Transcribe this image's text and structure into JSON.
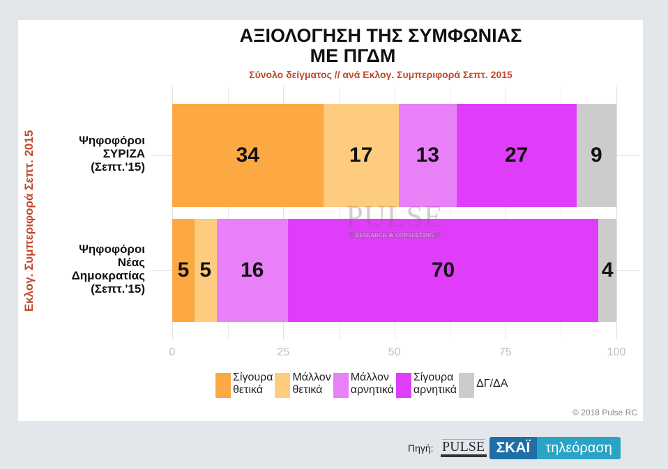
{
  "title_line1": "ΑΞΙΟΛΟΓΗΣΗ ΤΗΣ ΣΥΜΦΩΝΙΑΣ",
  "title_line2": "ΜΕ ΠΓΔΜ",
  "subtitle": "Σύνολο δείγματος // ανά Εκλογ. Συμπεριφορά Σεπτ. 2015",
  "y_axis_label": "Εκλογ. Συμπεριφορά Σεπτ. 2015",
  "categories": [
    {
      "line1": "Ψηφοφόροι",
      "line2": "ΣΥΡΙΖΑ",
      "line3": "(Σεπτ.'15)"
    },
    {
      "line1": "Ψηφοφόροι",
      "line2": "Νέας",
      "line3": "Δημοκρατίας",
      "line4": "(Σεπτ.'15)"
    }
  ],
  "x_ticks": [
    "0",
    "25",
    "50",
    "75",
    "100"
  ],
  "legend": [
    {
      "line1": "Σίγουρα",
      "line2": "θετικά",
      "color": "#fca843"
    },
    {
      "line1": "Μάλλον",
      "line2": "θετικά",
      "color": "#fdcc7f"
    },
    {
      "line1": "Μάλλον",
      "line2": "αρνητικά",
      "color": "#e881f7"
    },
    {
      "line1": "Σίγουρα",
      "line2": "αρνητικά",
      "color": "#e03dfb"
    },
    {
      "line1": "ΔΓ/ΔΑ",
      "color": "#cccccc"
    }
  ],
  "copyright": "© 2018 Pulse RC",
  "watermark": {
    "name": "PULSE",
    "tagline": "RESEARCH & CONSULTING"
  },
  "footer": {
    "source_label": "Πηγή:",
    "pulse_logo": "PULSE",
    "skai_brand": "ΣΚΑΪ",
    "skai_tagline": "τηλεόραση"
  },
  "chart_data": {
    "type": "bar",
    "orientation": "horizontal",
    "stacked": true,
    "title": "ΑΞΙΟΛΟΓΗΣΗ ΤΗΣ ΣΥΜΦΩΝΙΑΣ ΜΕ ΠΓΔΜ",
    "subtitle": "Σύνολο δείγματος // ανά Εκλογ. Συμπεριφορά Σεπτ. 2015",
    "xlabel": "",
    "ylabel": "Εκλογ. Συμπεριφορά Σεπτ. 2015",
    "xlim": [
      0,
      100
    ],
    "x_ticks": [
      0,
      25,
      50,
      75,
      100
    ],
    "grid": true,
    "legend_position": "bottom",
    "categories": [
      "Ψηφοφόροι ΣΥΡΙΖΑ (Σεπτ.'15)",
      "Ψηφοφόροι Νέας Δημοκρατίας (Σεπτ.'15)"
    ],
    "series": [
      {
        "name": "Σίγουρα θετικά",
        "color": "#fca843",
        "values": [
          34,
          5
        ]
      },
      {
        "name": "Μάλλον θετικά",
        "color": "#fdcc7f",
        "values": [
          17,
          5
        ]
      },
      {
        "name": "Μάλλον αρνητικά",
        "color": "#e881f7",
        "values": [
          13,
          16
        ]
      },
      {
        "name": "Σίγουρα αρνητικά",
        "color": "#e03dfb",
        "values": [
          27,
          70
        ]
      },
      {
        "name": "ΔΓ/ΔΑ",
        "color": "#cccccc",
        "values": [
          9,
          4
        ]
      }
    ],
    "annotations": [
      "© 2018 Pulse RC"
    ]
  }
}
